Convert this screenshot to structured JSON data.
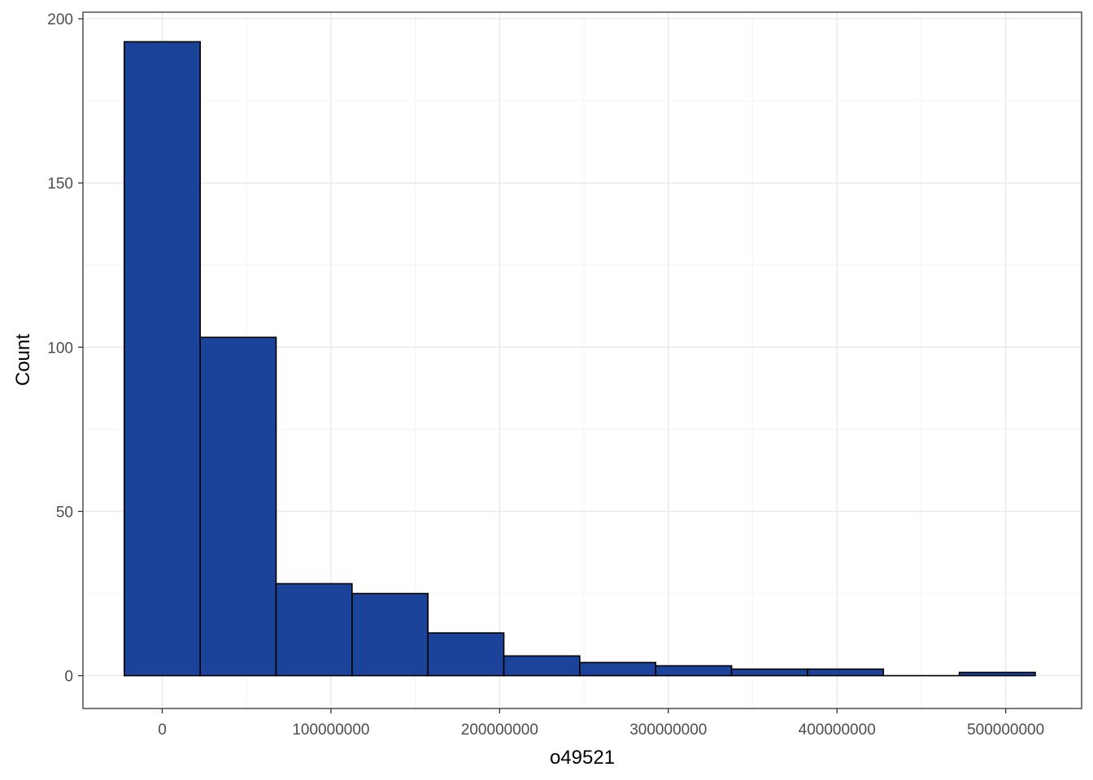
{
  "chart_data": {
    "type": "bar",
    "subtype": "histogram",
    "title": "",
    "xlabel": "o49521",
    "ylabel": "Count",
    "xlim": [
      -47000000,
      545000000
    ],
    "ylim": [
      -10,
      202
    ],
    "x_ticks": [
      0,
      100000000,
      200000000,
      300000000,
      400000000,
      500000000
    ],
    "x_tick_labels": [
      "0",
      "100000000",
      "200000000",
      "300000000",
      "400000000",
      "500000000"
    ],
    "y_ticks": [
      0,
      50,
      100,
      150,
      200
    ],
    "y_tick_labels": [
      "0",
      "50",
      "100",
      "150",
      "200"
    ],
    "grid": true,
    "legend": "none",
    "bin_width": 45000000,
    "bins": [
      {
        "start": -22500000,
        "end": 22500000,
        "count": 193
      },
      {
        "start": 22500000,
        "end": 67500000,
        "count": 103
      },
      {
        "start": 67500000,
        "end": 112500000,
        "count": 28
      },
      {
        "start": 112500000,
        "end": 157500000,
        "count": 25
      },
      {
        "start": 157500000,
        "end": 202500000,
        "count": 13
      },
      {
        "start": 202500000,
        "end": 247500000,
        "count": 6
      },
      {
        "start": 247500000,
        "end": 292500000,
        "count": 4
      },
      {
        "start": 292500000,
        "end": 337500000,
        "count": 3
      },
      {
        "start": 337500000,
        "end": 382500000,
        "count": 2
      },
      {
        "start": 382500000,
        "end": 427500000,
        "count": 2
      },
      {
        "start": 427500000,
        "end": 472500000,
        "count": 0
      },
      {
        "start": 472500000,
        "end": 517500000,
        "count": 1
      }
    ],
    "colors": {
      "bar_fill": "#1A4399",
      "bar_stroke": "#000000",
      "grid_major": "#EBEBEB",
      "grid_minor": "#F5F5F5",
      "panel_border": "#333333",
      "tick_text": "#4D4D4D",
      "title_text": "#000000"
    }
  }
}
